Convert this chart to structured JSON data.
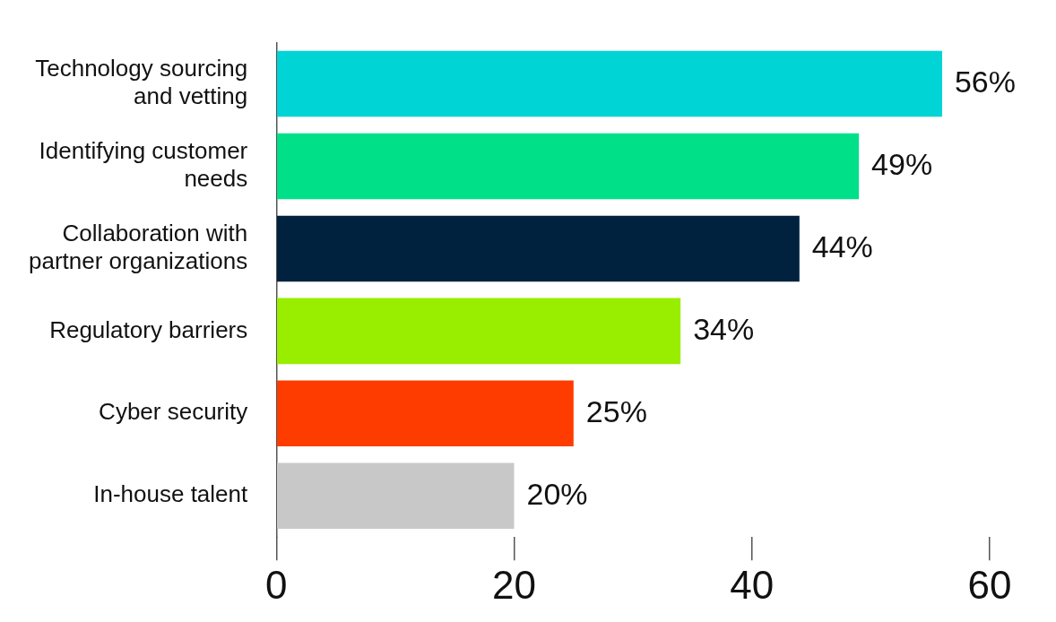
{
  "chart_data": {
    "type": "bar",
    "orientation": "horizontal",
    "categories": [
      "Technology sourcing and vetting",
      "Identifying customer needs",
      "Collaboration with partner organizations",
      "Regulatory barriers",
      "Cyber security",
      "In-house talent"
    ],
    "values": [
      56,
      49,
      44,
      34,
      25,
      20
    ],
    "colors": [
      "#00d4d4",
      "#00e089",
      "#00223f",
      "#99ee00",
      "#ff3c00",
      "#c8c8c8"
    ],
    "value_labels": [
      "56%",
      "49%",
      "44%",
      "34%",
      "25%",
      "20%"
    ],
    "xlim": [
      0,
      60
    ],
    "xticks": [
      0,
      20,
      40,
      60
    ],
    "grid": false,
    "legend": false
  }
}
